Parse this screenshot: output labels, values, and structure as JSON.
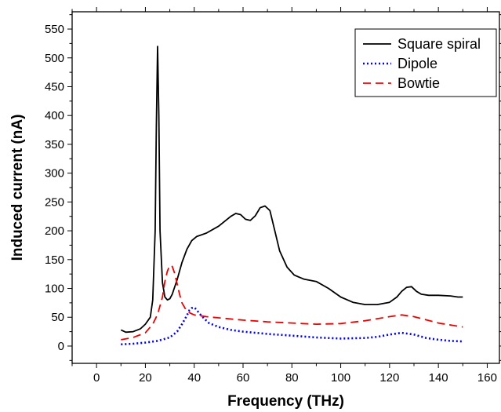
{
  "chart_data": {
    "type": "line",
    "title": "",
    "xlabel": "Frequency (THz)",
    "ylabel": "Induced current (nA)",
    "xlim": [
      -10,
      165
    ],
    "ylim": [
      -30,
      580
    ],
    "xticks": [
      0,
      20,
      40,
      60,
      80,
      100,
      120,
      140,
      160
    ],
    "yticks": [
      0,
      50,
      100,
      150,
      200,
      250,
      300,
      350,
      400,
      450,
      500,
      550
    ],
    "grid": false,
    "legend_position": "top-right",
    "series": [
      {
        "name": "Square spiral",
        "color": "#000000",
        "dash": "solid",
        "x": [
          10,
          12,
          15,
          18,
          20,
          22,
          23,
          24,
          24.5,
          25,
          25.5,
          26,
          27,
          28,
          29,
          30,
          31,
          33,
          35,
          37,
          39,
          41,
          45,
          50,
          55,
          57,
          59,
          61,
          63,
          65,
          67,
          69,
          71,
          73,
          75,
          78,
          81,
          85,
          90,
          95,
          100,
          105,
          110,
          115,
          120,
          123,
          125,
          127,
          129,
          131,
          133,
          136,
          140,
          145,
          148,
          150
        ],
        "y": [
          28,
          24,
          25,
          30,
          38,
          50,
          80,
          200,
          380,
          520,
          400,
          200,
          110,
          85,
          80,
          82,
          90,
          115,
          145,
          168,
          183,
          190,
          196,
          208,
          225,
          230,
          228,
          220,
          218,
          226,
          240,
          243,
          235,
          200,
          165,
          137,
          123,
          116,
          112,
          100,
          85,
          76,
          72,
          72,
          76,
          85,
          95,
          102,
          103,
          95,
          90,
          88,
          88,
          87,
          85,
          85
        ]
      },
      {
        "name": "Dipole",
        "color": "#0000ee",
        "dash": "dot",
        "x": [
          10,
          15,
          20,
          25,
          30,
          33,
          35,
          37,
          38,
          39,
          40,
          41,
          42,
          44,
          46,
          50,
          55,
          60,
          70,
          80,
          90,
          100,
          110,
          115,
          120,
          125,
          130,
          135,
          140,
          145,
          150
        ],
        "y": [
          3,
          4,
          6,
          9,
          15,
          25,
          38,
          53,
          62,
          66,
          67,
          63,
          57,
          48,
          40,
          33,
          28,
          25,
          21,
          18,
          15,
          13,
          14,
          16,
          20,
          23,
          20,
          14,
          11,
          9,
          8
        ]
      },
      {
        "name": "Bowtie",
        "color": "#ee0000",
        "dash": "dash",
        "x": [
          10,
          15,
          20,
          23,
          25,
          27,
          28,
          29,
          30,
          31,
          32,
          33,
          34,
          35,
          37,
          40,
          45,
          50,
          60,
          70,
          80,
          90,
          100,
          110,
          120,
          125,
          130,
          140,
          150
        ],
        "y": [
          11,
          15,
          23,
          38,
          55,
          85,
          112,
          130,
          140,
          138,
          126,
          108,
          90,
          75,
          60,
          54,
          51,
          49,
          45,
          42,
          40,
          38,
          39,
          44,
          51,
          54,
          51,
          40,
          33
        ]
      }
    ]
  }
}
